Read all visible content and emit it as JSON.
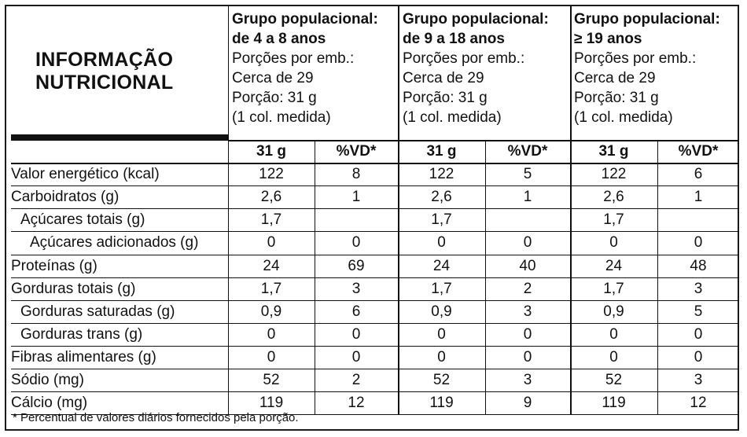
{
  "title": [
    "INFORMAÇÃO",
    "NUTRICIONAL"
  ],
  "groups": [
    {
      "heading": [
        "Grupo populacional:",
        "de 4 a 8 anos"
      ],
      "details": [
        "Porções por emb.:",
        "Cerca de 29",
        "Porção: 31 g",
        "(1 col. medida)"
      ]
    },
    {
      "heading": [
        "Grupo populacional:",
        "de 9 a 18 anos"
      ],
      "details": [
        "Porções por emb.:",
        "Cerca de 29",
        "Porção: 31 g",
        "(1 col. medida)"
      ]
    },
    {
      "heading": [
        "Grupo populacional:",
        "≥ 19 anos"
      ],
      "details": [
        "Porções por emb.:",
        "Cerca de 29",
        "Porção: 31 g",
        "(1 col. medida)"
      ]
    }
  ],
  "column_headers": [
    "31 g",
    "%VD*"
  ],
  "rows": [
    {
      "label": "Valor energético (kcal)",
      "values": [
        "122",
        "8",
        "122",
        "5",
        "122",
        "6"
      ]
    },
    {
      "label": "Carboidratos (g)",
      "values": [
        "2,6",
        "1",
        "2,6",
        "1",
        "2,6",
        "1"
      ]
    },
    {
      "label": "Açúcares totais (g)",
      "values": [
        "1,7",
        "",
        "1,7",
        "",
        "1,7",
        ""
      ]
    },
    {
      "label": "Açúcares adicionados (g)",
      "values": [
        "0",
        "0",
        "0",
        "0",
        "0",
        "0"
      ]
    },
    {
      "label": "Proteínas (g)",
      "values": [
        "24",
        "69",
        "24",
        "40",
        "24",
        "48"
      ]
    },
    {
      "label": "Gorduras totais (g)",
      "values": [
        "1,7",
        "3",
        "1,7",
        "2",
        "1,7",
        "3"
      ]
    },
    {
      "label": "Gorduras saturadas (g)",
      "values": [
        "0,9",
        "6",
        "0,9",
        "3",
        "0,9",
        "5"
      ]
    },
    {
      "label": "Gorduras trans (g)",
      "values": [
        "0",
        "0",
        "0",
        "0",
        "0",
        "0"
      ]
    },
    {
      "label": "Fibras alimentares (g)",
      "values": [
        "0",
        "0",
        "0",
        "0",
        "0",
        "0"
      ]
    },
    {
      "label": "Sódio (mg)",
      "values": [
        "52",
        "2",
        "52",
        "3",
        "52",
        "3"
      ]
    },
    {
      "label": "Cálcio (mg)",
      "values": [
        "119",
        "12",
        "119",
        "9",
        "119",
        "12"
      ]
    }
  ],
  "footnote": "* Percentual de valores diários fornecidos pela porção."
}
